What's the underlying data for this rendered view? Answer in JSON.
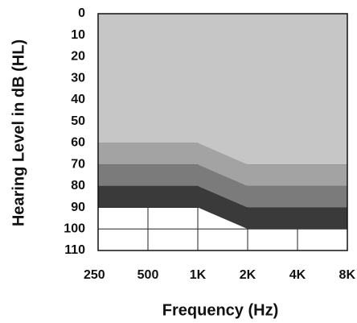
{
  "chart_data": {
    "type": "stacked-area",
    "x_label": "Frequency (Hz)",
    "y_label": "Hearing Level in dB (HL)",
    "categories": [
      "250",
      "500",
      "1K",
      "2K",
      "4K",
      "8K"
    ],
    "series": [
      {
        "color": "#c6c6c6",
        "values": [
          60,
          60,
          60,
          70,
          70,
          70
        ]
      },
      {
        "color": "#a3a3a3",
        "values": [
          10,
          10,
          10,
          10,
          10,
          10
        ]
      },
      {
        "color": "#7b7b7b",
        "values": [
          10,
          10,
          10,
          10,
          10,
          10
        ]
      },
      {
        "color": "#3a3a3a",
        "values": [
          10,
          10,
          10,
          10,
          10,
          10
        ]
      }
    ],
    "ylim": [
      0,
      110
    ],
    "yticks": [
      0,
      10,
      20,
      30,
      40,
      50,
      60,
      70,
      80,
      90,
      100,
      110
    ],
    "inverted_y": true,
    "grid": true
  }
}
